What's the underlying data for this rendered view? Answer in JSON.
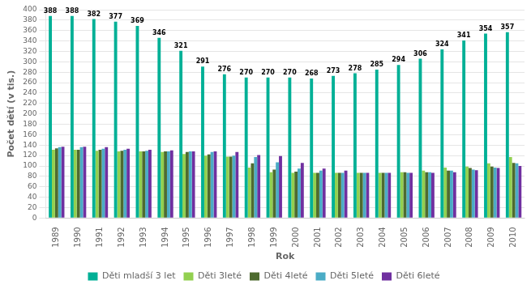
{
  "chart_data": {
    "type": "bar",
    "xlabel": "Rok",
    "ylabel": "Počet dětí (v tis.)",
    "categories": [
      "1989",
      "1990",
      "1991",
      "1992",
      "1993",
      "1994",
      "1995",
      "1996",
      "1997",
      "1998",
      "1999",
      "2000",
      "2001",
      "2002",
      "2003",
      "2004",
      "2005",
      "2006",
      "2007",
      "2008",
      "2009",
      "2010"
    ],
    "series": [
      {
        "name": "Děti mladší 3 let",
        "color": "#00B096",
        "data_labels": true,
        "values": [
          388,
          388,
          382,
          377,
          369,
          346,
          321,
          291,
          276,
          270,
          270,
          270,
          268,
          273,
          278,
          285,
          294,
          306,
          324,
          341,
          354,
          357
        ]
      },
      {
        "name": "Děti 3leté",
        "color": "#92D050",
        "values": [
          131,
          131,
          129,
          128,
          128,
          127,
          123,
          120,
          118,
          97,
          88,
          87,
          87,
          87,
          87,
          87,
          88,
          91,
          97,
          99,
          105,
          117
        ]
      },
      {
        "name": "Děti 4leté",
        "color": "#4E6B2F",
        "values": [
          134,
          131,
          131,
          129,
          128,
          128,
          127,
          122,
          118,
          105,
          93,
          89,
          87,
          87,
          87,
          87,
          88,
          88,
          91,
          96,
          99,
          106
        ]
      },
      {
        "name": "Děti 5leté",
        "color": "#4BACC6",
        "values": [
          136,
          136,
          133,
          131,
          129,
          128,
          128,
          127,
          120,
          117,
          107,
          95,
          91,
          87,
          87,
          87,
          87,
          88,
          91,
          93,
          97,
          105
        ]
      },
      {
        "name": "Děti 6leté",
        "color": "#7030A0",
        "values": [
          137,
          137,
          136,
          133,
          131,
          130,
          128,
          128,
          127,
          121,
          119,
          106,
          95,
          91,
          87,
          87,
          87,
          87,
          88,
          92,
          96,
          100
        ]
      }
    ],
    "ylim": [
      0,
      400
    ],
    "yticks": [
      0,
      20,
      40,
      60,
      80,
      100,
      120,
      140,
      160,
      180,
      200,
      220,
      240,
      260,
      280,
      300,
      320,
      340,
      360,
      380,
      400
    ],
    "grid": true,
    "legend": "bottom"
  }
}
